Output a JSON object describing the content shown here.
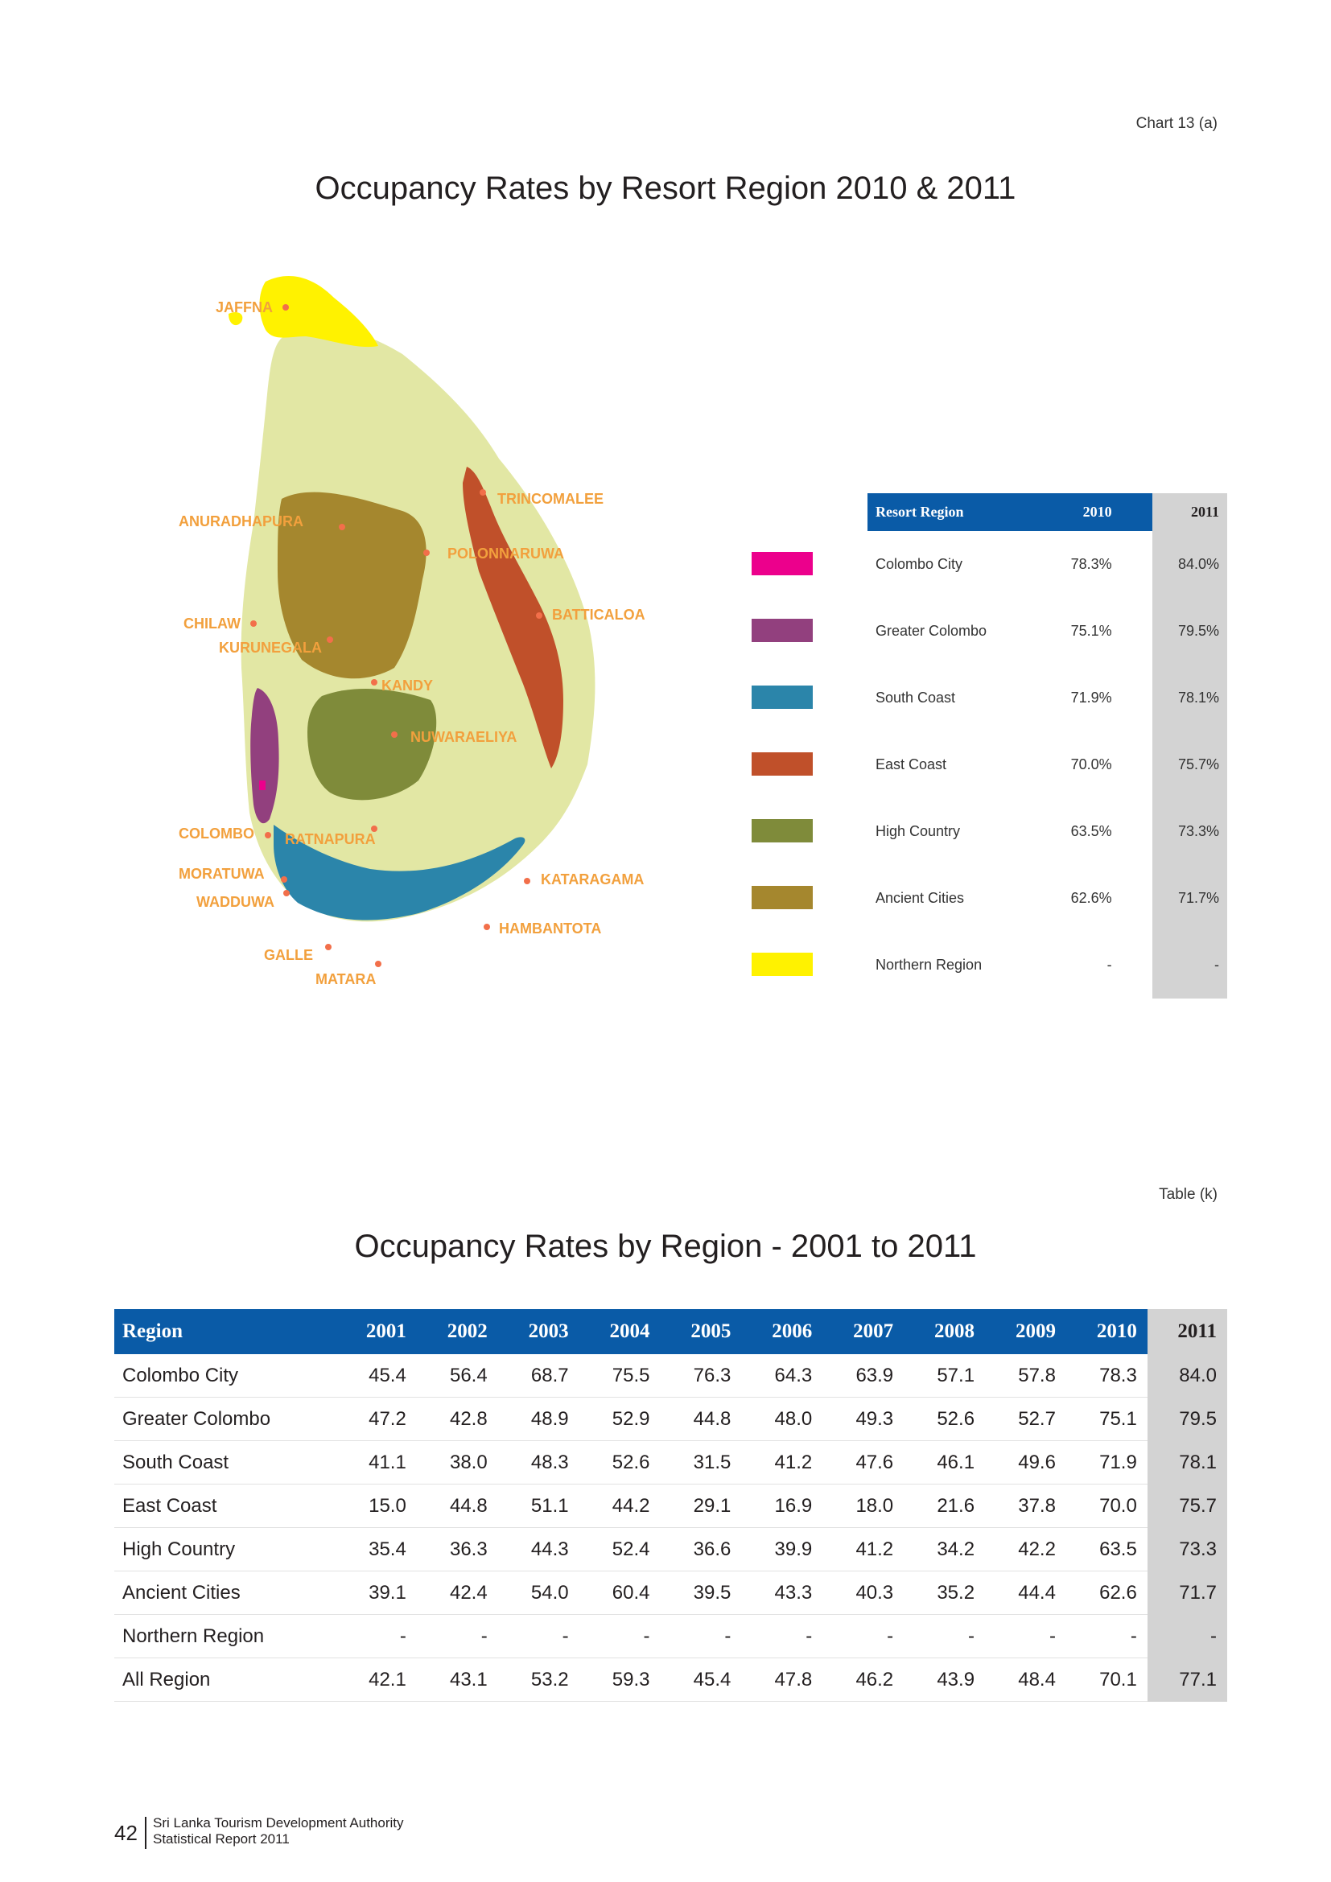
{
  "header": {
    "chart_tag": "Chart 13 (a)",
    "map_title": "Occupancy  Rates by Resort Region 2010 & 2011"
  },
  "map": {
    "cities": [
      "JAFFNA",
      "TRINCOMALEE",
      "ANURADHAPURA",
      "POLONNARUWA",
      "BATTICALOA",
      "CHILAW",
      "KURUNEGALA",
      "KANDY",
      "NUWARAELIYA",
      "COLOMBO",
      "RATNAPURA",
      "MORATUWA",
      "KATARAGAMA",
      "WADDUWA",
      "HAMBANTOTA",
      "GALLE",
      "MATARA"
    ],
    "colors": {
      "land": "#e2e7a4",
      "colombo_city": "#ec008c",
      "greater_colombo": "#92407e",
      "south_coast": "#2b85aa",
      "east_coast": "#c0502a",
      "high_country": "#7f8b3a",
      "ancient_cities": "#a5872e",
      "northern_region": "#fff200",
      "label": "#f2a03d"
    }
  },
  "legend_table": {
    "headers": [
      "Resort Region",
      "2010",
      "2011"
    ],
    "rows": [
      {
        "name": "Colombo City",
        "v2010": "78.3%",
        "v2011": "84.0%",
        "color": "#ec008c"
      },
      {
        "name": "Greater Colombo",
        "v2010": "75.1%",
        "v2011": "79.5%",
        "color": "#92407e"
      },
      {
        "name": "South Coast",
        "v2010": "71.9%",
        "v2011": "78.1%",
        "color": "#2b85aa"
      },
      {
        "name": "East Coast",
        "v2010": "70.0%",
        "v2011": "75.7%",
        "color": "#c0502a"
      },
      {
        "name": "High Country",
        "v2010": "63.5%",
        "v2011": "73.3%",
        "color": "#7f8b3a"
      },
      {
        "name": "Ancient Cities",
        "v2010": "62.6%",
        "v2011": "71.7%",
        "color": "#a5872e"
      },
      {
        "name": "Northern Region",
        "v2010": "-",
        "v2011": "-",
        "color": "#fff200"
      }
    ]
  },
  "table_section": {
    "tag": "Table (k)",
    "title": "Occupancy Rates by Region - 2001 to 2011",
    "headers": [
      "Region",
      "2001",
      "2002",
      "2003",
      "2004",
      "2005",
      "2006",
      "2007",
      "2008",
      "2009",
      "2010",
      "2011"
    ],
    "rows": [
      [
        "Colombo City",
        "45.4",
        "56.4",
        "68.7",
        "75.5",
        "76.3",
        "64.3",
        "63.9",
        "57.1",
        "57.8",
        "78.3",
        "84.0"
      ],
      [
        "Greater Colombo",
        "47.2",
        "42.8",
        "48.9",
        "52.9",
        "44.8",
        "48.0",
        "49.3",
        "52.6",
        "52.7",
        "75.1",
        "79.5"
      ],
      [
        "South Coast",
        "41.1",
        "38.0",
        "48.3",
        "52.6",
        "31.5",
        "41.2",
        "47.6",
        "46.1",
        "49.6",
        "71.9",
        "78.1"
      ],
      [
        "East Coast",
        "15.0",
        "44.8",
        "51.1",
        "44.2",
        "29.1",
        "16.9",
        "18.0",
        "21.6",
        "37.8",
        "70.0",
        "75.7"
      ],
      [
        "High Country",
        "35.4",
        "36.3",
        "44.3",
        "52.4",
        "36.6",
        "39.9",
        "41.2",
        "34.2",
        "42.2",
        "63.5",
        "73.3"
      ],
      [
        "Ancient Cities",
        "39.1",
        "42.4",
        "54.0",
        "60.4",
        "39.5",
        "43.3",
        "40.3",
        "35.2",
        "44.4",
        "62.6",
        "71.7"
      ],
      [
        "Northern Region",
        "-",
        "-",
        "-",
        "-",
        "-",
        "-",
        "-",
        "-",
        "-",
        "-",
        "-"
      ],
      [
        "All Region",
        "42.1",
        "43.1",
        "53.2",
        "59.3",
        "45.4",
        "47.8",
        "46.2",
        "43.9",
        "48.4",
        "70.1",
        "77.1"
      ]
    ]
  },
  "footer": {
    "page_number": "42",
    "line1": "Sri Lanka Tourism Development Authority",
    "line2": "Statistical Report 2011"
  }
}
